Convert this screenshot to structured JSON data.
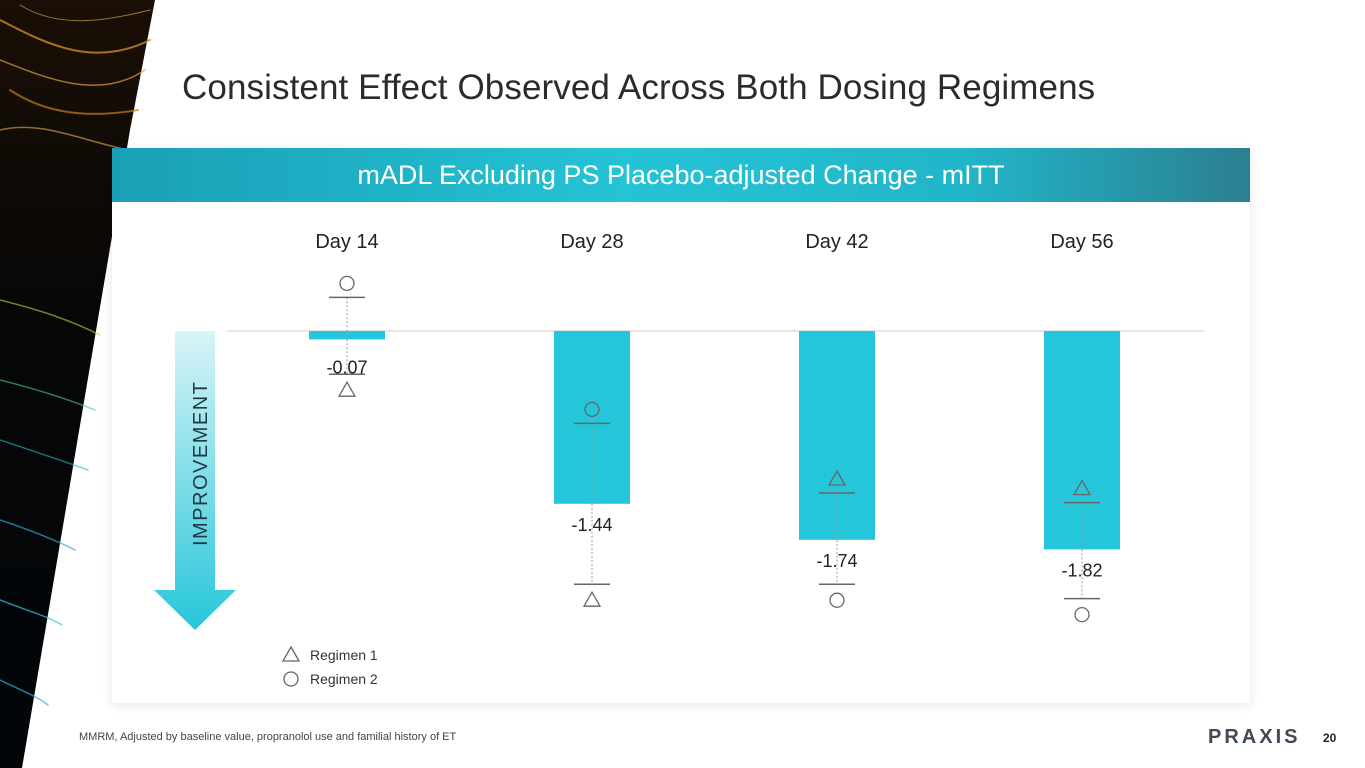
{
  "slide": {
    "title": "Consistent Effect Observed Across Both Dosing Regimens",
    "footnote": "MMRM, Adjusted by baseline value, propranolol use and familial history of ET",
    "logo_text": "PRAXIS",
    "page_number": "20"
  },
  "panel": {
    "header": "mADL Excluding PS Placebo-adjusted Change - mITT"
  },
  "chart_data": {
    "type": "bar",
    "title": "mADL Excluding PS Placebo-adjusted Change - mITT",
    "categories": [
      "Day 14",
      "Day 28",
      "Day 42",
      "Day 56"
    ],
    "values": [
      -0.07,
      -1.44,
      -1.74,
      -1.82
    ],
    "value_labels": [
      "-0.07",
      "-1.44",
      "-1.74",
      "-1.82"
    ],
    "regimen_1": [
      -0.36,
      -2.11,
      -1.35,
      -1.43
    ],
    "regimen_2": [
      0.28,
      -0.77,
      -2.11,
      -2.23
    ],
    "ylim": [
      -2.5,
      0.6
    ],
    "axis_label": "IMPROVEMENT",
    "legend": [
      {
        "name": "Regimen 1",
        "marker": "triangle"
      },
      {
        "name": "Regimen 2",
        "marker": "circle"
      }
    ],
    "colors": {
      "bar": "#26c6da",
      "marker": "#666666",
      "arrow_light": "#d9f4f7",
      "arrow_dark": "#26c6da"
    }
  }
}
